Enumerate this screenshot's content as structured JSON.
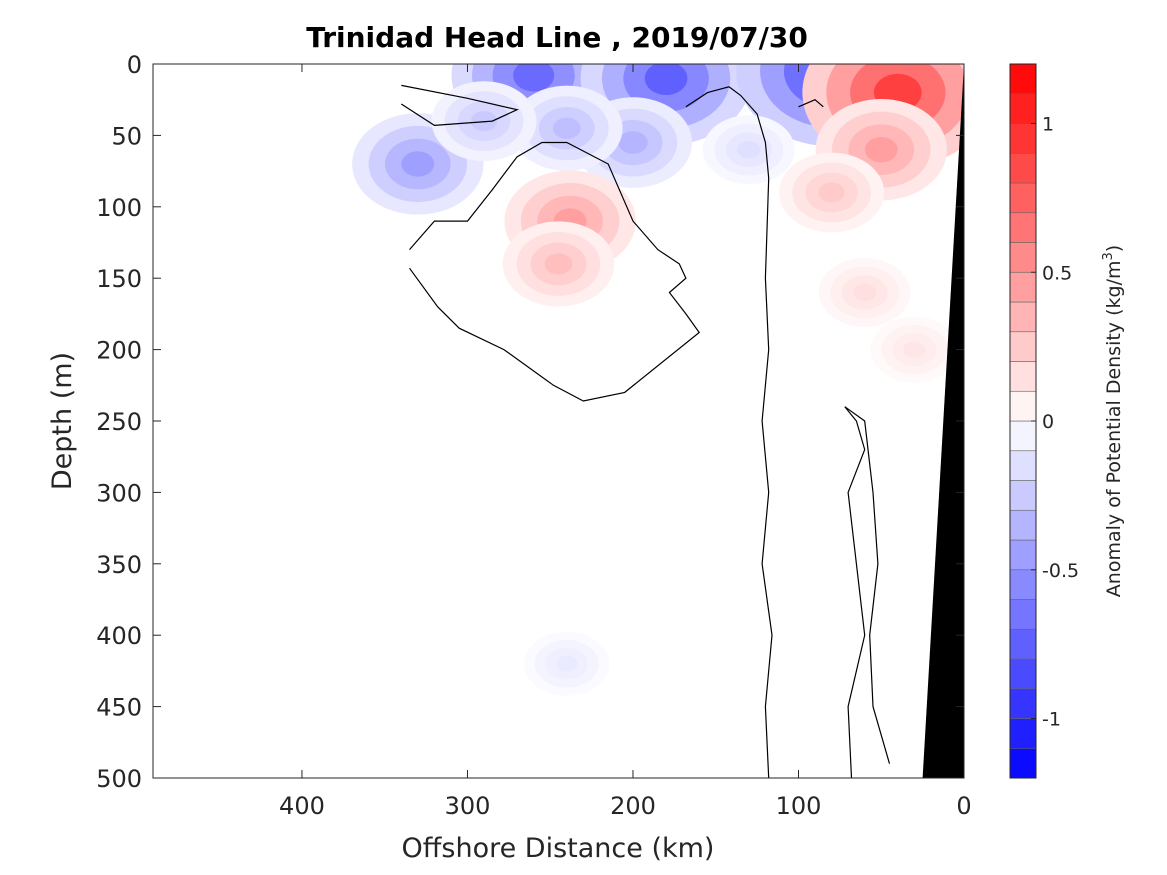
{
  "chart_data": {
    "type": "heatmap",
    "title": "Trinidad Head Line , 2019/07/30",
    "xlabel": "Offshore Distance (km)",
    "ylabel": "Depth (m)",
    "xlim": [
      490,
      0
    ],
    "ylim": [
      0,
      500
    ],
    "x_reversed": true,
    "y_reversed": true,
    "xticks": [
      "400",
      "300",
      "200",
      "100",
      "0"
    ],
    "yticks": [
      "0",
      "50",
      "100",
      "150",
      "200",
      "250",
      "300",
      "350",
      "400",
      "450",
      "500"
    ],
    "colorbar": {
      "label": "Anomaly of Potential Density (kg/m",
      "label_superscript": "3",
      "label_suffix": ")",
      "range": [
        -1.2,
        1.2
      ],
      "step": 0.1,
      "ticks": [
        "-1",
        "-0.5",
        "0",
        "0.5",
        "1"
      ],
      "negative_color": "#0000ff",
      "positive_color": "#ff0000"
    },
    "zero_contour_lines": [
      [
        [
          340,
          15
        ],
        [
          300,
          24
        ],
        [
          270,
          32
        ],
        [
          285,
          40
        ],
        [
          320,
          43
        ],
        [
          340,
          28
        ]
      ],
      [
        [
          335,
          130
        ],
        [
          320,
          110
        ],
        [
          300,
          110
        ],
        [
          285,
          88
        ],
        [
          270,
          65
        ],
        [
          255,
          55
        ],
        [
          240,
          55
        ],
        [
          215,
          70
        ],
        [
          200,
          110
        ],
        [
          185,
          130
        ],
        [
          172,
          140
        ],
        [
          168,
          150
        ],
        [
          178,
          160
        ],
        [
          168,
          175
        ],
        [
          160,
          188
        ],
        [
          205,
          230
        ],
        [
          230,
          236
        ],
        [
          248,
          225
        ],
        [
          278,
          200
        ],
        [
          305,
          185
        ],
        [
          318,
          170
        ],
        [
          335,
          143
        ]
      ],
      [
        [
          168,
          30
        ],
        [
          155,
          20
        ],
        [
          142,
          16
        ],
        [
          135,
          22
        ],
        [
          125,
          35
        ],
        [
          120,
          55
        ],
        [
          118,
          80
        ],
        [
          120,
          150
        ],
        [
          118,
          200
        ],
        [
          122,
          250
        ],
        [
          118,
          300
        ],
        [
          122,
          350
        ],
        [
          116,
          400
        ],
        [
          120,
          450
        ],
        [
          118,
          500
        ]
      ],
      [
        [
          100,
          30
        ],
        [
          90,
          25
        ],
        [
          85,
          30
        ]
      ],
      [
        [
          72,
          240
        ],
        [
          65,
          250
        ],
        [
          60,
          270
        ],
        [
          70,
          300
        ],
        [
          65,
          350
        ],
        [
          60,
          400
        ],
        [
          70,
          450
        ],
        [
          68,
          500
        ]
      ],
      [
        [
          72,
          240
        ],
        [
          60,
          250
        ],
        [
          55,
          300
        ],
        [
          52,
          350
        ],
        [
          57,
          400
        ],
        [
          55,
          450
        ],
        [
          45,
          490
        ]
      ]
    ],
    "anomaly_blobs": [
      {
        "x": 220,
        "depth": 5,
        "value": -1.0
      },
      {
        "x": 260,
        "depth": 8,
        "value": -0.7
      },
      {
        "x": 180,
        "depth": 10,
        "value": -0.75
      },
      {
        "x": 80,
        "depth": 5,
        "value": -0.9
      },
      {
        "x": 330,
        "depth": 70,
        "value": -0.45
      },
      {
        "x": 200,
        "depth": 55,
        "value": -0.35
      },
      {
        "x": 240,
        "depth": 45,
        "value": -0.3
      },
      {
        "x": 290,
        "depth": 40,
        "value": -0.25
      },
      {
        "x": 130,
        "depth": 60,
        "value": -0.15
      },
      {
        "x": 238,
        "depth": 110,
        "value": 0.45
      },
      {
        "x": 245,
        "depth": 140,
        "value": 0.3
      },
      {
        "x": 40,
        "depth": 20,
        "value": 0.9
      },
      {
        "x": 50,
        "depth": 60,
        "value": 0.45
      },
      {
        "x": 80,
        "depth": 90,
        "value": 0.25
      },
      {
        "x": 60,
        "depth": 160,
        "value": 0.15
      },
      {
        "x": 30,
        "depth": 200,
        "value": 0.12
      },
      {
        "x": 240,
        "depth": 420,
        "value": -0.1
      }
    ],
    "seafloor": [
      [
        0,
        0
      ],
      [
        25,
        500
      ],
      [
        0,
        500
      ]
    ]
  }
}
